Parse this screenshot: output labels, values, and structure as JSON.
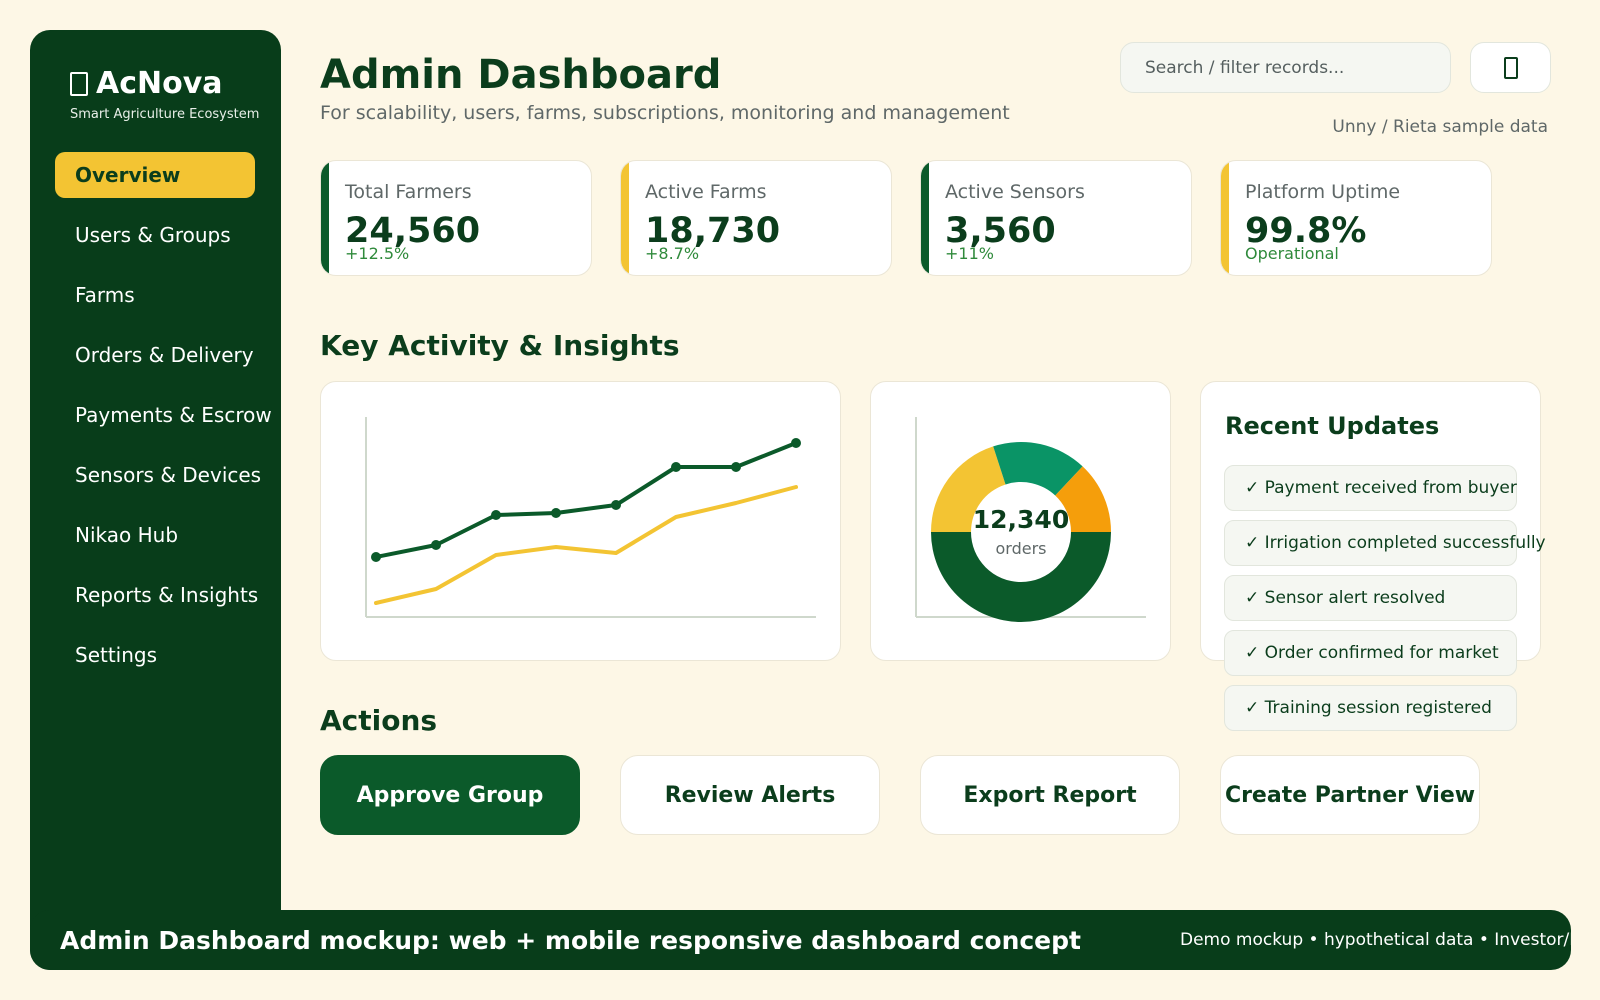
{
  "brand": {
    "name": "AcNova",
    "tagline": "Smart Agriculture Ecosystem",
    "icon": "leaf-icon"
  },
  "sidebar": {
    "items": [
      {
        "label": "Overview",
        "active": true
      },
      {
        "label": "Users & Groups"
      },
      {
        "label": "Farms"
      },
      {
        "label": "Orders & Delivery"
      },
      {
        "label": "Payments & Escrow"
      },
      {
        "label": "Sensors & Devices"
      },
      {
        "label": "Nikao Hub"
      },
      {
        "label": "Reports & Insights"
      },
      {
        "label": "Settings"
      }
    ]
  },
  "header": {
    "title": "Admin Dashboard",
    "subtitle": "For scalability, users, farms, subscriptions, monitoring and management",
    "search_placeholder": "Search / filter records...",
    "notification_icon": "bell-icon",
    "sample_note": "Unny / Rieta sample data"
  },
  "stats": [
    {
      "label": "Total Farmers",
      "value": "24,560",
      "delta": "+12.5%",
      "accent": "#0b5a2a"
    },
    {
      "label": "Active Farms",
      "value": "18,730",
      "delta": "+8.7%",
      "accent": "#f3c433"
    },
    {
      "label": "Active Sensors",
      "value": "3,560",
      "delta": "+11%",
      "accent": "#0b5a2a"
    },
    {
      "label": "Platform Uptime",
      "value": "99.8%",
      "delta": "Operational",
      "accent": "#f3c433"
    }
  ],
  "insights": {
    "title": "Key Activity & Insights"
  },
  "chart_data": [
    {
      "type": "line",
      "x": [
        1,
        2,
        3,
        4,
        5,
        6,
        7,
        8
      ],
      "series": [
        {
          "values": [
            30,
            36,
            51,
            52,
            56,
            75,
            75,
            87
          ],
          "color": "#0b5a2a",
          "markers": true
        },
        {
          "values": [
            7,
            14,
            31,
            35,
            32,
            50,
            57,
            65
          ],
          "color": "#f3c433",
          "markers": false
        }
      ],
      "ylim": [
        0,
        100
      ],
      "grid": false
    },
    {
      "type": "pie",
      "donut": true,
      "center_value": "12,340",
      "center_label": "orders",
      "slices": [
        {
          "value": 50,
          "color": "#0b5a2a"
        },
        {
          "value": 20,
          "color": "#f3c433"
        },
        {
          "value": 17,
          "color": "#0a9466"
        },
        {
          "value": 13,
          "color": "#f59e0b"
        }
      ]
    }
  ],
  "updates": {
    "title": "Recent Updates",
    "items": [
      "✓ Payment received from buyer",
      "✓ Irrigation completed successfully",
      "✓ Sensor alert resolved",
      "✓ Order confirmed for market",
      "✓ Training session registered"
    ]
  },
  "actions": {
    "title": "Actions",
    "buttons": [
      "Approve Group",
      "Review Alerts",
      "Export Report",
      "Create Partner View"
    ]
  },
  "footer": {
    "title": "Admin Dashboard mockup: web + mobile responsive dashboard concept",
    "note": "Demo mockup • hypothetical data • Investor/Partner preview"
  }
}
